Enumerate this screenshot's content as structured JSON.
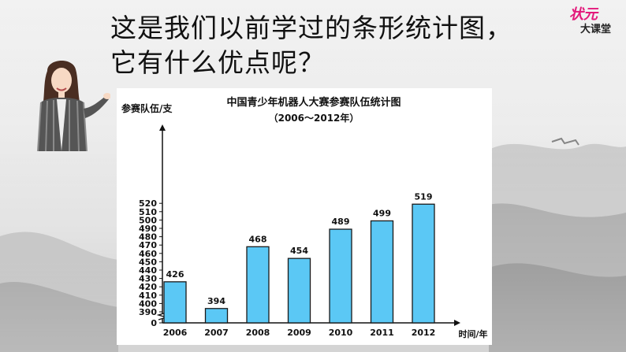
{
  "slide": {
    "title_line1": "这是我们以前学过的条形统计图，",
    "title_line2": "它有什么优点呢？"
  },
  "logo": {
    "top_text": "状元",
    "bottom_text": "大课堂",
    "accent_color": "#e3197b"
  },
  "presenter": {
    "icon": "teacher-illustration"
  },
  "chart_data": {
    "type": "bar",
    "title": "中国青少年机器人大赛参赛队伍统计图",
    "subtitle": "（2006～2012年）",
    "ylabel": "参赛队伍/支",
    "xlabel": "时间/年",
    "categories": [
      "2006",
      "2007",
      "2008",
      "2009",
      "2010",
      "2011",
      "2012"
    ],
    "values": [
      426,
      394,
      468,
      454,
      489,
      499,
      519
    ],
    "y_ticks": [
      "0",
      "390",
      "400",
      "410",
      "420",
      "430",
      "440",
      "450",
      "460",
      "470",
      "480",
      "490",
      "500",
      "510",
      "520"
    ],
    "ylim": [
      390,
      520
    ],
    "y_axis_break": true,
    "grid": false,
    "bar_color": "#5bc8f5",
    "bar_border": "#1a1a1a"
  }
}
